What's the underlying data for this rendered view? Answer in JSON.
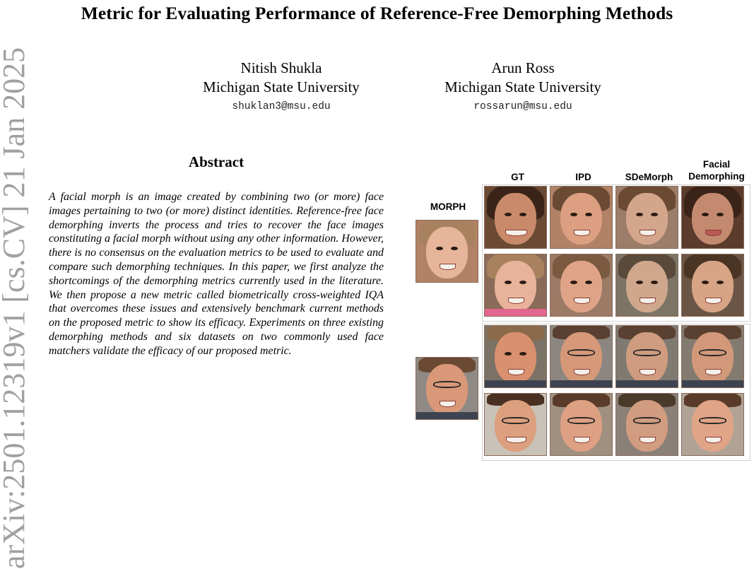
{
  "paper": {
    "title": "Metric for Evaluating Performance of Reference-Free Demorphing Methods",
    "arxiv_id": "arXiv:2501.12319v1  [cs.CV]  21 Jan 2025",
    "authors": [
      {
        "name": "Nitish Shukla",
        "affiliation": "Michigan State University",
        "email": "shuklan3@msu.edu"
      },
      {
        "name": "Arun Ross",
        "affiliation": "Michigan State University",
        "email": "rossarun@msu.edu"
      }
    ],
    "abstract_heading": "Abstract",
    "abstract_text": "A facial morph is an image created by combining two (or more) face images pertaining to two (or more) distinct identities. Reference-free face demorphing inverts the pro­cess and tries to recover the face images constituting a fa­cial morph without using any other information. However, there is no consensus on the evaluation metrics to be used to evaluate and compare such demorphing techniques. In this paper, we first analyze the shortcomings of the demor­phing metrics currently used in the literature. We then pro­pose a new metric called biometrically cross-weighted IQA that overcomes these issues and extensively benchmark cur­rent methods on the proposed metric to show its efficacy. Experiments on three existing demorphing methods and six datasets on two commonly used face matchers validate the efficacy of our proposed metric."
  },
  "figure": {
    "morph_label": "MORPH",
    "columns": [
      "GT",
      "IPD",
      "SDeMorph",
      "Facial\nDemorphing"
    ],
    "columns_display": {
      "gt": "GT",
      "ipd": "IPD",
      "sdemorph": "SDeMorph",
      "facial_line1": "Facial",
      "facial_line2": "Demorphing"
    },
    "palette": {
      "skin_warm": "#d79a7c",
      "skin_light": "#e6b59a",
      "skin_male": "#d99878",
      "hair_dark": "#3a2418",
      "hair_brown": "#6b4a34",
      "hair_light": "#a8825e",
      "shirt_pink": "#e2668f",
      "shirt_dark": "#3d4350",
      "background_warm": "#b28266",
      "background_gray": "#8f8a86"
    }
  }
}
